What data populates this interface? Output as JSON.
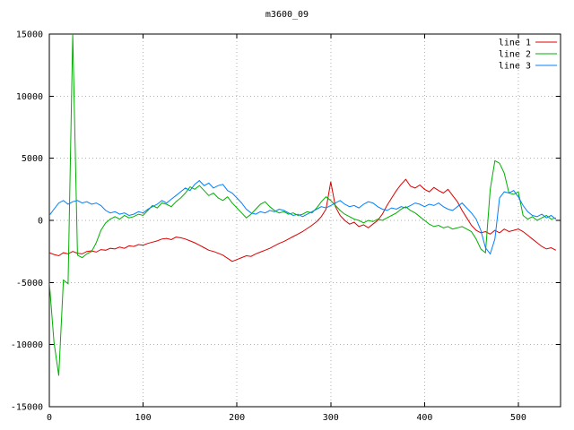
{
  "chart_data": {
    "type": "line",
    "title": "m3600_09",
    "xlabel": "",
    "ylabel": "",
    "xlim": [
      0,
      545
    ],
    "ylim": [
      -15000,
      15000
    ],
    "x_ticks": [
      0,
      100,
      200,
      300,
      400,
      500
    ],
    "y_ticks": [
      -15000,
      -10000,
      -5000,
      0,
      5000,
      10000,
      15000
    ],
    "grid": true,
    "legend_position": "top-right",
    "x_start": 0,
    "x_step": 5,
    "series": [
      {
        "name": "line 1",
        "color": "#dd0000",
        "values": [
          -2600,
          -2750,
          -2850,
          -2600,
          -2700,
          -2500,
          -2650,
          -2700,
          -2500,
          -2450,
          -2550,
          -2350,
          -2400,
          -2250,
          -2300,
          -2150,
          -2250,
          -2050,
          -2100,
          -1950,
          -2000,
          -1850,
          -1750,
          -1650,
          -1500,
          -1450,
          -1550,
          -1350,
          -1400,
          -1500,
          -1650,
          -1800,
          -2000,
          -2200,
          -2400,
          -2500,
          -2650,
          -2800,
          -3050,
          -3300,
          -3150,
          -3000,
          -2850,
          -2900,
          -2700,
          -2550,
          -2400,
          -2250,
          -2050,
          -1850,
          -1700,
          -1500,
          -1300,
          -1100,
          -900,
          -650,
          -400,
          -100,
          300,
          900,
          3100,
          1100,
          400,
          0,
          -300,
          -150,
          -500,
          -350,
          -600,
          -300,
          0,
          500,
          1200,
          1800,
          2400,
          2900,
          3300,
          2750,
          2600,
          2850,
          2500,
          2300,
          2650,
          2400,
          2200,
          2500,
          2000,
          1500,
          800,
          200,
          -400,
          -800,
          -1000,
          -900,
          -1100,
          -800,
          -1000,
          -700,
          -900,
          -800,
          -700,
          -900,
          -1200,
          -1500,
          -1800,
          -2100,
          -2300,
          -2200,
          -2400
        ]
      },
      {
        "name": "line 2",
        "color": "#00b000",
        "values": [
          -5000,
          -9800,
          -12500,
          -4800,
          -5100,
          15000,
          -2800,
          -3000,
          -2700,
          -2500,
          -1800,
          -800,
          -200,
          100,
          300,
          100,
          400,
          200,
          300,
          500,
          400,
          800,
          1200,
          1000,
          1400,
          1300,
          1100,
          1500,
          1800,
          2200,
          2700,
          2500,
          2800,
          2400,
          2000,
          2200,
          1800,
          1600,
          1900,
          1400,
          1000,
          600,
          200,
          500,
          900,
          1300,
          1500,
          1100,
          800,
          600,
          700,
          500,
          600,
          400,
          500,
          700,
          600,
          1000,
          1500,
          1900,
          1600,
          1200,
          800,
          500,
          300,
          100,
          0,
          -200,
          0,
          -100,
          100,
          0,
          200,
          400,
          600,
          900,
          1100,
          800,
          600,
          300,
          0,
          -300,
          -500,
          -400,
          -600,
          -500,
          -700,
          -600,
          -500,
          -700,
          -900,
          -1500,
          -2300,
          -2600,
          2500,
          4800,
          4600,
          3800,
          2200,
          2100,
          2300,
          400,
          100,
          300,
          0,
          200,
          400,
          100,
          200
        ]
      },
      {
        "name": "line 3",
        "color": "#0080ff",
        "values": [
          400,
          900,
          1400,
          1600,
          1300,
          1500,
          1600,
          1400,
          1500,
          1300,
          1400,
          1200,
          800,
          600,
          700,
          500,
          600,
          400,
          500,
          700,
          600,
          900,
          1100,
          1300,
          1600,
          1400,
          1700,
          2000,
          2300,
          2600,
          2400,
          2900,
          3200,
          2800,
          3000,
          2600,
          2800,
          2900,
          2400,
          2200,
          1800,
          1400,
          900,
          600,
          500,
          700,
          600,
          800,
          700,
          900,
          800,
          600,
          400,
          500,
          300,
          500,
          700,
          900,
          1100,
          1000,
          1200,
          1400,
          1600,
          1300,
          1100,
          1200,
          1000,
          1300,
          1500,
          1400,
          1100,
          900,
          800,
          1000,
          900,
          1100,
          1000,
          1200,
          1400,
          1300,
          1100,
          1300,
          1200,
          1400,
          1100,
          900,
          800,
          1100,
          1400,
          1000,
          600,
          100,
          -800,
          -2200,
          -2700,
          -1500,
          1800,
          2300,
          2200,
          2400,
          1900,
          1200,
          700,
          400,
          300,
          500,
          200,
          400,
          100
        ]
      }
    ]
  }
}
